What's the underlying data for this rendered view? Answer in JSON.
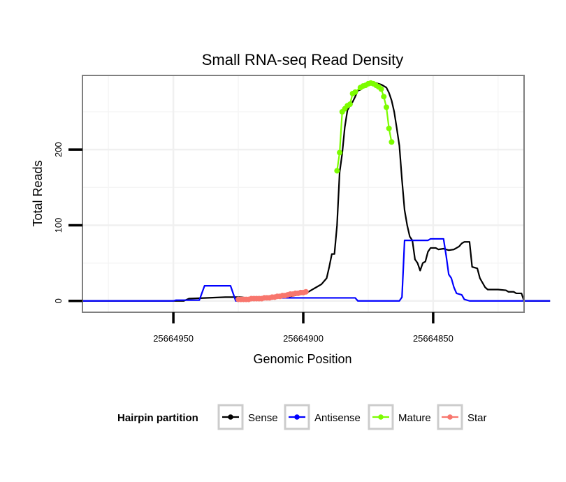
{
  "chart_data": {
    "type": "line",
    "title": "Small RNA-seq Read Density",
    "xlabel": "Genomic Position",
    "ylabel": "Total Reads",
    "x_reversed": true,
    "xlim": [
      25664985,
      25664815
    ],
    "ylim": [
      -15,
      298
    ],
    "x_ticks": [
      25664950,
      25664900,
      25664850
    ],
    "x_tick_labels": [
      "25664950",
      "25664900",
      "25664850"
    ],
    "y_ticks": [
      0,
      100,
      200
    ],
    "y_tick_labels": [
      "0",
      "100",
      "200"
    ],
    "grid": true,
    "legend": {
      "title": "Hairpin partition",
      "position": "bottom",
      "entries": [
        {
          "label": "Sense",
          "color": "#000000"
        },
        {
          "label": "Antisense",
          "color": "#0000ff"
        },
        {
          "label": "Mature",
          "color": "#7cfc00"
        },
        {
          "label": "Star",
          "color": "#f8766d"
        }
      ]
    },
    "series": [
      {
        "name": "Sense",
        "color": "#000000",
        "points": [
          [
            25664985,
            0
          ],
          [
            25664950,
            0
          ],
          [
            25664946,
            0
          ],
          [
            25664944,
            3
          ],
          [
            25664930,
            5
          ],
          [
            25664924,
            5
          ],
          [
            25664920,
            3
          ],
          [
            25664916,
            3
          ],
          [
            25664905,
            6
          ],
          [
            25664902,
            8
          ],
          [
            25664899,
            10
          ],
          [
            25664897,
            14
          ],
          [
            25664895,
            18
          ],
          [
            25664893,
            22
          ],
          [
            25664891,
            30
          ],
          [
            25664890,
            45
          ],
          [
            25664889,
            62
          ],
          [
            25664888,
            62
          ],
          [
            25664887,
            100
          ],
          [
            25664886,
            170
          ],
          [
            25664885,
            195
          ],
          [
            25664884,
            230
          ],
          [
            25664883,
            252
          ],
          [
            25664882,
            258
          ],
          [
            25664881,
            263
          ],
          [
            25664880,
            270
          ],
          [
            25664879,
            278
          ],
          [
            25664878,
            279
          ],
          [
            25664876,
            284
          ],
          [
            25664874,
            287
          ],
          [
            25664872,
            288
          ],
          [
            25664870,
            286
          ],
          [
            25664868,
            282
          ],
          [
            25664867,
            275
          ],
          [
            25664866,
            265
          ],
          [
            25664865,
            250
          ],
          [
            25664864,
            228
          ],
          [
            25664863,
            205
          ],
          [
            25664862,
            160
          ],
          [
            25664861,
            120
          ],
          [
            25664860,
            100
          ],
          [
            25664859,
            85
          ],
          [
            25664858,
            80
          ],
          [
            25664857,
            55
          ],
          [
            25664856,
            50
          ],
          [
            25664855,
            40
          ],
          [
            25664854,
            50
          ],
          [
            25664853,
            52
          ],
          [
            25664852,
            65
          ],
          [
            25664851,
            70
          ],
          [
            25664849,
            70
          ],
          [
            25664848,
            68
          ],
          [
            25664846,
            69
          ],
          [
            25664844,
            67
          ],
          [
            25664842,
            68
          ],
          [
            25664840,
            72
          ],
          [
            25664839,
            76
          ],
          [
            25664838,
            78
          ],
          [
            25664836,
            78
          ],
          [
            25664835,
            45
          ],
          [
            25664833,
            43
          ],
          [
            25664832,
            30
          ],
          [
            25664830,
            18
          ],
          [
            25664829,
            15
          ],
          [
            25664825,
            15
          ],
          [
            25664822,
            14
          ],
          [
            25664821,
            12
          ],
          [
            25664819,
            12
          ],
          [
            25664818,
            10
          ],
          [
            25664816,
            10
          ],
          [
            25664815,
            0
          ],
          [
            25664805,
            0
          ]
        ]
      },
      {
        "name": "Antisense",
        "color": "#0000ff",
        "points": [
          [
            25664985,
            0
          ],
          [
            25664950,
            0
          ],
          [
            25664949,
            1
          ],
          [
            25664940,
            1
          ],
          [
            25664938,
            20
          ],
          [
            25664928,
            20
          ],
          [
            25664926,
            0
          ],
          [
            25664922,
            0
          ],
          [
            25664921,
            2
          ],
          [
            25664919,
            2
          ],
          [
            25664917,
            4
          ],
          [
            25664895,
            4
          ],
          [
            25664880,
            4
          ],
          [
            25664879,
            0
          ],
          [
            25664863,
            0
          ],
          [
            25664862,
            5
          ],
          [
            25664861,
            80
          ],
          [
            25664855,
            80
          ],
          [
            25664854,
            80
          ],
          [
            25664853,
            80
          ],
          [
            25664852,
            80
          ],
          [
            25664851,
            82
          ],
          [
            25664846,
            82
          ],
          [
            25664845,
            60
          ],
          [
            25664844,
            35
          ],
          [
            25664843,
            30
          ],
          [
            25664842,
            18
          ],
          [
            25664841,
            10
          ],
          [
            25664839,
            8
          ],
          [
            25664838,
            2
          ],
          [
            25664836,
            0
          ],
          [
            25664825,
            0
          ],
          [
            25664805,
            0
          ]
        ]
      },
      {
        "name": "Mature",
        "color": "#7cfc00",
        "points": [
          [
            25664887,
            172
          ],
          [
            25664886,
            196
          ],
          [
            25664885,
            250
          ],
          [
            25664884,
            254
          ],
          [
            25664883,
            258
          ],
          [
            25664882,
            260
          ],
          [
            25664881,
            274
          ],
          [
            25664880,
            276
          ],
          [
            25664878,
            282
          ],
          [
            25664877,
            284
          ],
          [
            25664876,
            285
          ],
          [
            25664875,
            287
          ],
          [
            25664874,
            288
          ],
          [
            25664873,
            287
          ],
          [
            25664872,
            285
          ],
          [
            25664871,
            283
          ],
          [
            25664870,
            280
          ],
          [
            25664869,
            270
          ],
          [
            25664868,
            256
          ],
          [
            25664867,
            228
          ],
          [
            25664866,
            210
          ]
        ]
      },
      {
        "name": "Star",
        "color": "#f8766d",
        "points": [
          [
            25664925,
            2
          ],
          [
            25664924,
            2
          ],
          [
            25664923,
            2
          ],
          [
            25664922,
            2
          ],
          [
            25664921,
            2
          ],
          [
            25664920,
            3
          ],
          [
            25664919,
            3
          ],
          [
            25664918,
            3
          ],
          [
            25664917,
            3
          ],
          [
            25664916,
            3
          ],
          [
            25664915,
            4
          ],
          [
            25664914,
            4
          ],
          [
            25664913,
            4
          ],
          [
            25664912,
            5
          ],
          [
            25664911,
            5
          ],
          [
            25664910,
            6
          ],
          [
            25664909,
            6
          ],
          [
            25664908,
            7
          ],
          [
            25664907,
            7
          ],
          [
            25664906,
            8
          ],
          [
            25664905,
            9
          ],
          [
            25664904,
            9
          ],
          [
            25664903,
            10
          ],
          [
            25664902,
            10
          ],
          [
            25664901,
            11
          ],
          [
            25664900,
            11
          ],
          [
            25664899,
            12
          ]
        ]
      }
    ]
  }
}
